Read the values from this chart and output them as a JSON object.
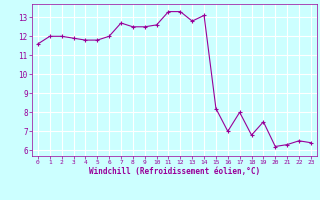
{
  "x": [
    0,
    1,
    2,
    3,
    4,
    5,
    6,
    7,
    8,
    9,
    10,
    11,
    12,
    13,
    14,
    15,
    16,
    17,
    18,
    19,
    20,
    21,
    22,
    23
  ],
  "y": [
    11.6,
    12.0,
    12.0,
    11.9,
    11.8,
    11.8,
    12.0,
    12.7,
    12.5,
    12.5,
    12.6,
    13.3,
    13.3,
    12.8,
    13.1,
    8.2,
    7.0,
    8.0,
    6.8,
    7.5,
    6.2,
    6.3,
    6.5,
    6.4
  ],
  "line_color": "#990099",
  "bg_color": "#ccffff",
  "grid_color": "#ffffff",
  "xlabel": "Windchill (Refroidissement éolien,°C)",
  "xlabel_color": "#990099",
  "tick_color": "#990099",
  "ylim": [
    5.7,
    13.7
  ],
  "yticks": [
    6,
    7,
    8,
    9,
    10,
    11,
    12,
    13
  ],
  "xticks": [
    0,
    1,
    2,
    3,
    4,
    5,
    6,
    7,
    8,
    9,
    10,
    11,
    12,
    13,
    14,
    15,
    16,
    17,
    18,
    19,
    20,
    21,
    22,
    23
  ],
  "marker": "+"
}
